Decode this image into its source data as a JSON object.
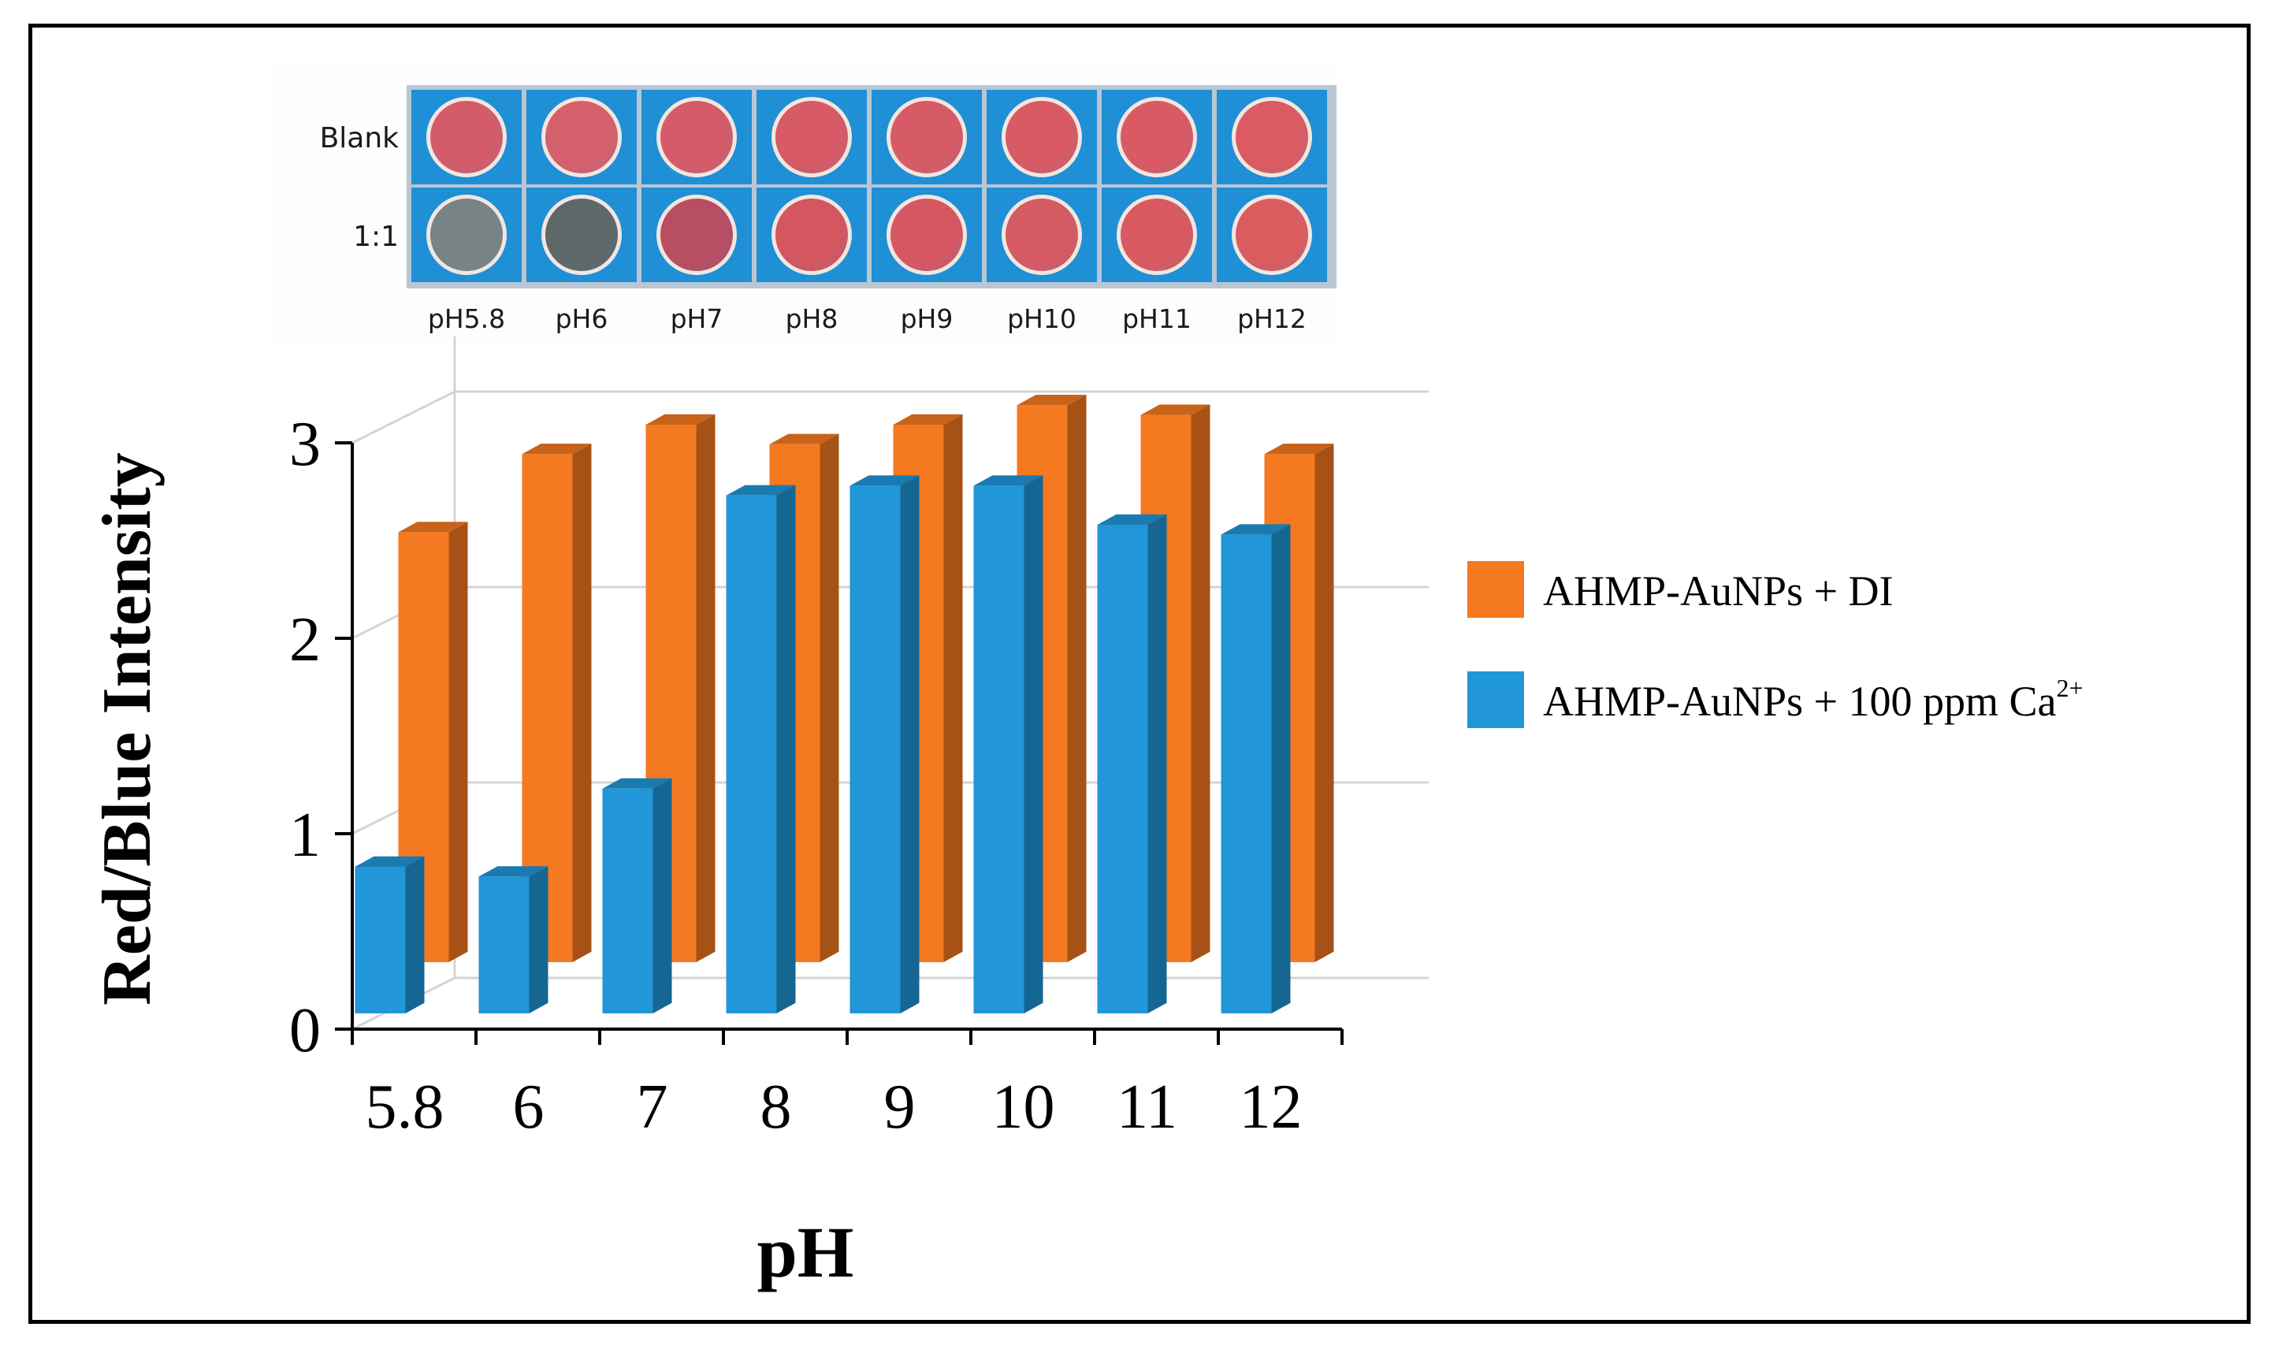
{
  "chart_data": {
    "type": "bar",
    "style": "3d-grouped",
    "categories": [
      "5.8",
      "6",
      "7",
      "8",
      "9",
      "10",
      "11",
      "12"
    ],
    "series": [
      {
        "name": "AHMP-AuNPs + DI",
        "color": "#f47920",
        "values": [
          2.2,
          2.6,
          2.75,
          2.65,
          2.75,
          2.85,
          2.8,
          2.6
        ]
      },
      {
        "name": "AHMP-AuNPs + 100 ppm Ca",
        "superscript": "2+",
        "color": "#2196d8",
        "values": [
          0.75,
          0.7,
          1.15,
          2.65,
          2.7,
          2.7,
          2.5,
          2.45
        ]
      }
    ],
    "xlabel": "pH",
    "ylabel": "Red/Blue Intensity",
    "yticks": [
      "0",
      "1",
      "2",
      "3"
    ],
    "ylim": [
      0,
      3
    ],
    "legend_position": "right",
    "grid": true
  },
  "inset": {
    "row_labels": [
      "Blank",
      "1:1"
    ],
    "column_labels": [
      "pH5.8",
      "pH6",
      "pH7",
      "pH8",
      "pH9",
      "pH10",
      "pH11",
      "pH12"
    ],
    "well_colors": [
      [
        "#d45c6a",
        "#d5606b",
        "#d65b68",
        "#d75a66",
        "#d75b66",
        "#d85a65",
        "#d95a63",
        "#dc5b62"
      ],
      [
        "#7a8383",
        "#5f6869",
        "#b84e62",
        "#d4565f",
        "#d65762",
        "#d65a62",
        "#d95a60",
        "#db5c5f"
      ]
    ]
  }
}
